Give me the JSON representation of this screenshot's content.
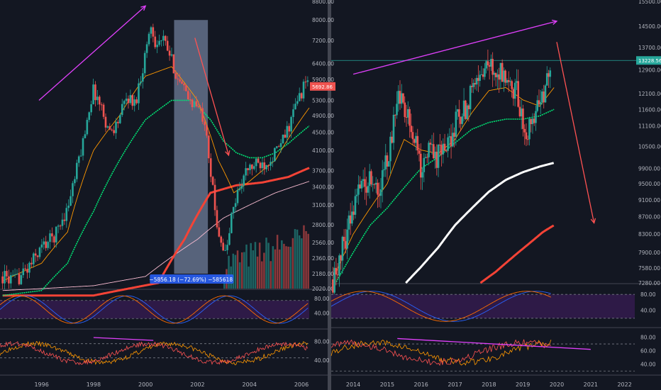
{
  "colors": {
    "background": "#131722",
    "panel_border": "#434651",
    "axis_text": "#b2b5be",
    "candle_up": "#26a69a",
    "candle_down": "#ef5350",
    "ma_green": "#00e676",
    "ma_red": "#f44336",
    "ma_pink": "#f8bbd0",
    "ma_white": "#ffffff",
    "ma_orange": "#ff9800",
    "trend_magenta": "#e040fb",
    "trend_red": "#ff5252",
    "osc_fill": "#2e1a47",
    "price_line": "#26a69a"
  },
  "chart_data": [
    {
      "type": "candlestick",
      "name": "left",
      "x_tick_labels": [
        "1996",
        "1998",
        "2000",
        "2002",
        "2004",
        "2006"
      ],
      "x_ticks": [
        1996,
        1998,
        2000,
        2002,
        2004,
        2006
      ],
      "xlim": [
        1994.4,
        2006.3
      ],
      "y_tick_labels": [
        "8800.00",
        "8000.00",
        "7200.00",
        "6400.00",
        "5900.00",
        "5300.00",
        "4900.00",
        "4500.00",
        "4100.00",
        "3700.00",
        "3400.00",
        "3100.00",
        "2800.00",
        "2560.00",
        "2360.00",
        "2180.00",
        "2020.00"
      ],
      "y_ticks": [
        8800,
        8000,
        7200,
        6400,
        5900,
        5300,
        4900,
        4500,
        4100,
        3700,
        3400,
        3100,
        2800,
        2560,
        2360,
        2180,
        2020
      ],
      "ylim": [
        2020,
        8800
      ],
      "log_scale": true,
      "price_label": "5692.86",
      "measure_label": "−5856.18 (−72.69%) −585618",
      "measure_range": {
        "x": [
          2001.1,
          2002.4
        ],
        "y": [
          2180,
          8000
        ]
      },
      "price_anchors": [
        [
          1994.5,
          2150
        ],
        [
          1995.0,
          2100
        ],
        [
          1995.5,
          2250
        ],
        [
          1996.0,
          2500
        ],
        [
          1996.5,
          2650
        ],
        [
          1997.0,
          3050
        ],
        [
          1997.3,
          3600
        ],
        [
          1997.6,
          4300
        ],
        [
          1997.8,
          5000
        ],
        [
          1998.0,
          5600
        ],
        [
          1998.3,
          5100
        ],
        [
          1998.6,
          4500
        ],
        [
          1998.9,
          4700
        ],
        [
          1999.3,
          5400
        ],
        [
          1999.6,
          5200
        ],
        [
          1999.9,
          6300
        ],
        [
          2000.2,
          7800
        ],
        [
          2000.4,
          7100
        ],
        [
          2000.7,
          7200
        ],
        [
          2001.0,
          6500
        ],
        [
          2001.3,
          5800
        ],
        [
          2001.6,
          5400
        ],
        [
          2001.9,
          5200
        ],
        [
          2002.1,
          5000
        ],
        [
          2002.3,
          4800
        ],
        [
          2002.5,
          3700
        ],
        [
          2002.7,
          2900
        ],
        [
          2002.9,
          2600
        ],
        [
          2003.1,
          2380
        ],
        [
          2003.3,
          2900
        ],
        [
          2003.6,
          3400
        ],
        [
          2003.9,
          3700
        ],
        [
          2004.2,
          3800
        ],
        [
          2004.6,
          3850
        ],
        [
          2004.9,
          4000
        ],
        [
          2005.2,
          4200
        ],
        [
          2005.5,
          4600
        ],
        [
          2005.8,
          5200
        ],
        [
          2006.1,
          5700
        ],
        [
          2006.25,
          5900
        ]
      ],
      "ma_series": [
        {
          "color": "ma_pink",
          "points": [
            [
              1994.5,
              2000
            ],
            [
              1996,
              2020
            ],
            [
              1998,
              2050
            ],
            [
              2000,
              2150
            ],
            [
              2002,
              2600
            ],
            [
              2003,
              2900
            ],
            [
              2004,
              3100
            ],
            [
              2005,
              3300
            ],
            [
              2006.3,
              3500
            ]
          ]
        },
        {
          "color": "ma_red",
          "points": [
            [
              1994.5,
              1950
            ],
            [
              1998,
              1950
            ],
            [
              2000.5,
              2080
            ],
            [
              2001.5,
              2600
            ],
            [
              2002.5,
              3300
            ],
            [
              2003.5,
              3430
            ],
            [
              2004.5,
              3480
            ],
            [
              2005.5,
              3580
            ],
            [
              2006.3,
              3750
            ]
          ]
        },
        {
          "color": "ma_green",
          "points": [
            [
              1994.5,
              1950
            ],
            [
              1996,
              2000
            ],
            [
              1997,
              2300
            ],
            [
              1998,
              3000
            ],
            [
              1999,
              3900
            ],
            [
              2000,
              4800
            ],
            [
              2001,
              5300
            ],
            [
              2001.8,
              5300
            ],
            [
              2002.5,
              4800
            ],
            [
              2003,
              4300
            ],
            [
              2003.5,
              4050
            ],
            [
              2004,
              3950
            ],
            [
              2004.5,
              3950
            ],
            [
              2005,
              4050
            ],
            [
              2005.5,
              4250
            ],
            [
              2006.3,
              4650
            ]
          ]
        },
        {
          "color": "ma_orange",
          "points": [
            [
              1994.5,
              2100
            ],
            [
              1996,
              2300
            ],
            [
              1997,
              2700
            ],
            [
              1998,
              4100
            ],
            [
              1999,
              4900
            ],
            [
              2000,
              6000
            ],
            [
              2001,
              6300
            ],
            [
              2002,
              5300
            ],
            [
              2002.8,
              3900
            ],
            [
              2003.4,
              3300
            ],
            [
              2004,
              3500
            ],
            [
              2005,
              3900
            ],
            [
              2006.3,
              5100
            ]
          ]
        }
      ],
      "trendlines": [
        {
          "color": "trend_magenta",
          "from": [
            1995.9,
            5300
          ],
          "to": [
            2000.0,
            8600
          ]
        },
        {
          "color": "trend_red",
          "from": [
            2001.9,
            7300
          ],
          "to": [
            2003.2,
            4000
          ]
        }
      ],
      "volume_region": {
        "x": [
          2003.0,
          2006.3
        ]
      },
      "oscillator_1": {
        "y_tick_labels": [
          "80.00",
          "40.00"
        ],
        "y_ticks": [
          80,
          40
        ],
        "ylim": [
          0,
          100
        ],
        "bands": [
          75,
          25
        ]
      },
      "oscillator_2": {
        "y_tick_labels": [
          "80.00",
          "40.00"
        ],
        "y_ticks": [
          80,
          40
        ],
        "ylim": [
          10,
          100
        ],
        "bands": [
          75,
          45
        ],
        "trendline": {
          "from": [
            1998.0,
            88
          ],
          "to": [
            2000.3,
            82
          ]
        }
      }
    },
    {
      "type": "candlestick",
      "name": "right",
      "x_tick_labels": [
        "2014",
        "2015",
        "2016",
        "2017",
        "2018",
        "2019",
        "2020",
        "2021",
        "2022"
      ],
      "x_ticks": [
        2014,
        2015,
        2016,
        2017,
        2018,
        2019,
        2020,
        2021,
        2022
      ],
      "xlim": [
        2013.35,
        2022.3
      ],
      "y_tick_labels": [
        "15500.00",
        "14500.00",
        "13700.00",
        "12900.00",
        "12100.00",
        "11600.00",
        "11100.00",
        "10500.00",
        "9900.00",
        "9500.00",
        "9100.00",
        "8700.00",
        "8300.00",
        "7900.00",
        "7580.00",
        "7280.00"
      ],
      "y_ticks": [
        15500,
        14500,
        13700,
        12900,
        12100,
        11600,
        11100,
        10500,
        9900,
        9500,
        9100,
        8700,
        8300,
        7900,
        7580,
        7280
      ],
      "ylim": [
        7280,
        15500
      ],
      "log_scale": true,
      "price_label": "13228.56",
      "price_line": 13228.56,
      "price_anchors": [
        [
          2013.4,
          7350
        ],
        [
          2013.6,
          7800
        ],
        [
          2013.9,
          8600
        ],
        [
          2014.2,
          9400
        ],
        [
          2014.5,
          9700
        ],
        [
          2014.8,
          9500
        ],
        [
          2015.0,
          10200
        ],
        [
          2015.2,
          11200
        ],
        [
          2015.3,
          12100
        ],
        [
          2015.5,
          11600
        ],
        [
          2015.7,
          11000
        ],
        [
          2015.9,
          10700
        ],
        [
          2016.0,
          9900
        ],
        [
          2016.2,
          10400
        ],
        [
          2016.5,
          10200
        ],
        [
          2016.8,
          10500
        ],
        [
          2017.0,
          11100
        ],
        [
          2017.3,
          11600
        ],
        [
          2017.5,
          12400
        ],
        [
          2017.8,
          12600
        ],
        [
          2018.0,
          13300
        ],
        [
          2018.2,
          12500
        ],
        [
          2018.4,
          12800
        ],
        [
          2018.6,
          12400
        ],
        [
          2018.8,
          12200
        ],
        [
          2019.0,
          11200
        ],
        [
          2019.1,
          10700
        ],
        [
          2019.3,
          11500
        ],
        [
          2019.5,
          12000
        ],
        [
          2019.7,
          12300
        ],
        [
          2019.85,
          13200
        ]
      ],
      "ma_series": [
        {
          "color": "ma_white",
          "points": [
            [
              2015.55,
              7280
            ],
            [
              2016,
              7600
            ],
            [
              2016.5,
              8000
            ],
            [
              2017,
              8500
            ],
            [
              2017.5,
              8900
            ],
            [
              2018,
              9300
            ],
            [
              2018.5,
              9600
            ],
            [
              2019,
              9800
            ],
            [
              2019.5,
              9950
            ],
            [
              2019.92,
              10050
            ]
          ]
        },
        {
          "color": "ma_red",
          "points": [
            [
              2017.75,
              7280
            ],
            [
              2018.2,
              7500
            ],
            [
              2018.7,
              7800
            ],
            [
              2019.2,
              8100
            ],
            [
              2019.6,
              8350
            ],
            [
              2019.92,
              8500
            ]
          ]
        },
        {
          "color": "ma_green",
          "points": [
            [
              2013.5,
              7300
            ],
            [
              2014,
              7900
            ],
            [
              2014.5,
              8500
            ],
            [
              2015,
              8900
            ],
            [
              2015.5,
              9400
            ],
            [
              2016,
              9900
            ],
            [
              2016.5,
              10200
            ],
            [
              2017,
              10600
            ],
            [
              2017.5,
              11000
            ],
            [
              2018,
              11200
            ],
            [
              2018.5,
              11300
            ],
            [
              2019,
              11300
            ],
            [
              2019.5,
              11400
            ],
            [
              2019.92,
              11600
            ]
          ]
        },
        {
          "color": "ma_orange",
          "points": [
            [
              2013.5,
              7500
            ],
            [
              2014,
              8300
            ],
            [
              2014.5,
              8900
            ],
            [
              2015,
              9500
            ],
            [
              2015.5,
              10700
            ],
            [
              2016,
              10400
            ],
            [
              2016.5,
              10300
            ],
            [
              2017,
              10700
            ],
            [
              2017.5,
              11500
            ],
            [
              2018,
              12200
            ],
            [
              2018.5,
              12300
            ],
            [
              2019,
              11900
            ],
            [
              2019.5,
              11700
            ],
            [
              2019.92,
              12300
            ]
          ]
        }
      ],
      "trendlines": [
        {
          "color": "trend_magenta",
          "from": [
            2014.0,
            12750
          ],
          "to": [
            2020.0,
            14700
          ]
        },
        {
          "color": "trend_red",
          "from": [
            2020.0,
            13900
          ],
          "to": [
            2021.1,
            8550
          ]
        }
      ],
      "oscillator_1": {
        "y_tick_labels": [
          "80.00",
          "40.00"
        ],
        "y_ticks": [
          80,
          40
        ],
        "ylim": [
          0,
          100
        ],
        "bands": [
          80,
          20
        ]
      },
      "oscillator_2": {
        "y_tick_labels": [
          "80.00",
          "60.00",
          "40.00"
        ],
        "y_ticks": [
          80,
          60,
          40
        ],
        "ylim": [
          25,
          90
        ],
        "bands": [
          70,
          30
        ],
        "trendline": {
          "from": [
            2015.3,
            78
          ],
          "to": [
            2021.0,
            62
          ]
        }
      }
    }
  ]
}
